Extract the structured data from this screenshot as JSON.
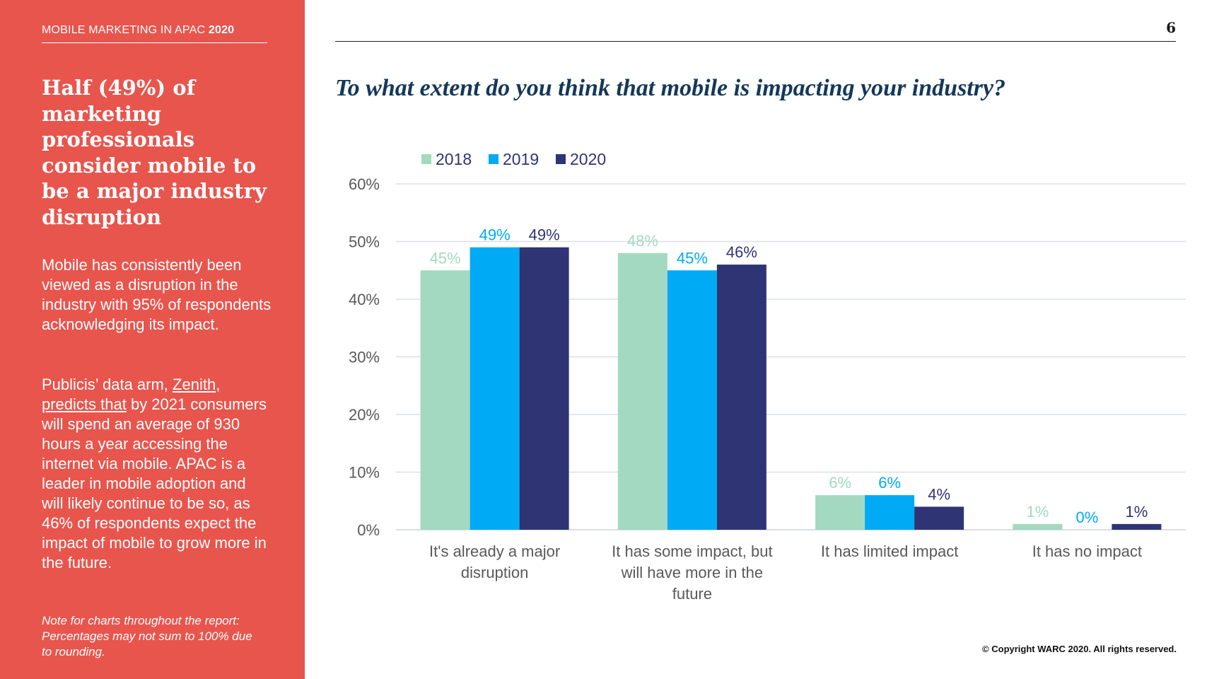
{
  "header": {
    "report_title": "MOBILE MARKETING IN APAC",
    "report_year": "2020",
    "page_number": "6"
  },
  "sidebar": {
    "headline": "Half (49%) of marketing professionals consider mobile to be a major industry disruption",
    "paragraph1": "Mobile has consistently been viewed as a disruption in the industry with 95% of respondents acknowledging its impact.",
    "paragraph2_pre": "Publicis’ data arm, ",
    "paragraph2_link": "Zenith, predicts that",
    "paragraph2_post": " by 2021 consumers will spend an average of 930 hours a year accessing the internet via mobile. APAC is a leader  in mobile adoption and will likely continue to be so, as 46% of respondents expect the impact of mobile to grow more in the future.",
    "note": "Note for charts throughout the report: Percentages may not sum to 100% due to rounding."
  },
  "colors": {
    "sidebar_bg": "#e8554d",
    "series_2018": "#a3d9c1",
    "series_2019": "#00aaf5",
    "series_2020": "#2f3474",
    "question_text": "#14385a"
  },
  "chart_data": {
    "type": "bar",
    "title": "To what extent do you think that mobile is impacting your industry?",
    "categories": [
      [
        "It's already a major",
        "disruption"
      ],
      [
        "It has some impact, but",
        "will have more in the",
        "future"
      ],
      [
        "It has limited impact"
      ],
      [
        "It has no impact"
      ]
    ],
    "series": [
      {
        "name": "2018",
        "values": [
          45,
          48,
          6,
          1
        ],
        "labels": [
          "45%",
          "48%",
          "6%",
          "1%"
        ]
      },
      {
        "name": "2019",
        "values": [
          49,
          45,
          6,
          0
        ],
        "labels": [
          "49%",
          "45%",
          "6%",
          "0%"
        ]
      },
      {
        "name": "2020",
        "values": [
          49,
          46,
          4,
          1
        ],
        "labels": [
          "49%",
          "46%",
          "4%",
          "1%"
        ]
      }
    ],
    "yticks": [
      "0%",
      "10%",
      "20%",
      "30%",
      "40%",
      "50%",
      "60%"
    ],
    "ylim": [
      0,
      60
    ],
    "grid": true,
    "legend": "top-left"
  },
  "footer": {
    "copyright": "© Copyright WARC 2020. All rights reserved."
  }
}
